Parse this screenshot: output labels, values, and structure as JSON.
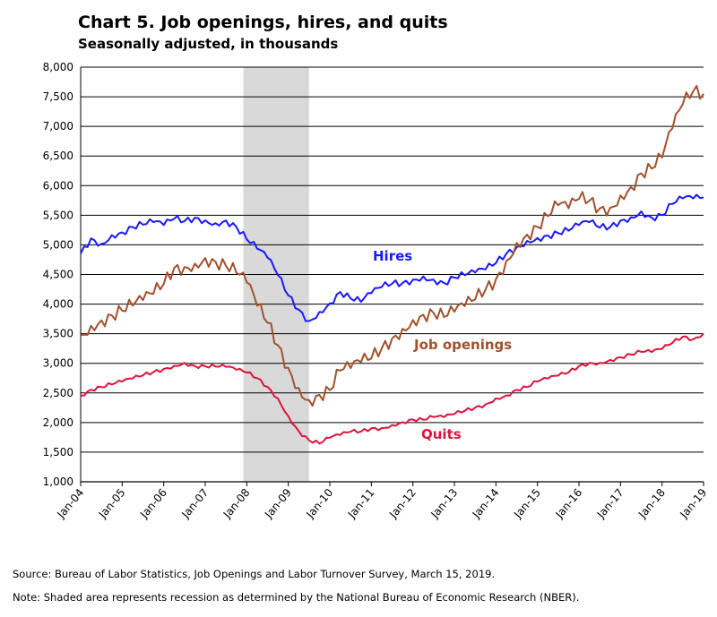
{
  "chart_data": {
    "type": "line",
    "title": "Chart 5. Job openings, hires, and quits",
    "subtitle": "Seasonally adjusted, in thousands",
    "ylim": [
      1000,
      8000
    ],
    "y_ticks": [
      "1,000",
      "1,500",
      "2,000",
      "2,500",
      "3,000",
      "3,500",
      "4,000",
      "4,500",
      "5,000",
      "5,500",
      "6,000",
      "6,500",
      "7,000",
      "7,500",
      "8,000"
    ],
    "x_ticks": [
      "Jan-04",
      "Jan-05",
      "Jan-06",
      "Jan-07",
      "Jan-08",
      "Jan-09",
      "Jan-10",
      "Jan-11",
      "Jan-12",
      "Jan-13",
      "Jan-14",
      "Jan-15",
      "Jan-16",
      "Jan-17",
      "Jan-18",
      "Jan-19"
    ],
    "grid": "horizontal",
    "recession_shading": {
      "start": 2007.917,
      "end": 2009.5
    },
    "series": [
      {
        "name": "Hires",
        "color": "#1a1aff",
        "x": [
          2004.0,
          2004.25,
          2004.5,
          2004.75,
          2005.0,
          2005.25,
          2005.5,
          2005.75,
          2006.0,
          2006.25,
          2006.5,
          2006.75,
          2007.0,
          2007.25,
          2007.5,
          2007.75,
          2008.0,
          2008.25,
          2008.5,
          2008.75,
          2009.0,
          2009.25,
          2009.5,
          2009.75,
          2010.0,
          2010.25,
          2010.5,
          2010.75,
          2011.0,
          2011.25,
          2011.5,
          2011.75,
          2012.0,
          2012.25,
          2012.5,
          2012.75,
          2013.0,
          2013.25,
          2013.5,
          2013.75,
          2014.0,
          2014.25,
          2014.5,
          2014.75,
          2015.0,
          2015.25,
          2015.5,
          2015.75,
          2016.0,
          2016.25,
          2016.5,
          2016.75,
          2017.0,
          2017.25,
          2017.5,
          2017.75,
          2018.0,
          2018.25,
          2018.5,
          2018.75,
          2019.0
        ],
        "values": [
          4850,
          5100,
          5000,
          5150,
          5200,
          5300,
          5350,
          5400,
          5350,
          5450,
          5400,
          5450,
          5400,
          5350,
          5400,
          5300,
          5100,
          4950,
          4800,
          4500,
          4150,
          3900,
          3700,
          3850,
          4000,
          4200,
          4100,
          4050,
          4200,
          4300,
          4350,
          4350,
          4400,
          4450,
          4400,
          4350,
          4450,
          4500,
          4550,
          4600,
          4700,
          4850,
          4950,
          5050,
          5100,
          5150,
          5200,
          5250,
          5350,
          5400,
          5300,
          5300,
          5400,
          5450,
          5550,
          5450,
          5500,
          5700,
          5800,
          5800,
          5800
        ]
      },
      {
        "name": "Job openings",
        "color": "#a0522d",
        "x": [
          2004.0,
          2004.25,
          2004.5,
          2004.75,
          2005.0,
          2005.25,
          2005.5,
          2005.75,
          2006.0,
          2006.25,
          2006.5,
          2006.75,
          2007.0,
          2007.25,
          2007.5,
          2007.75,
          2008.0,
          2008.25,
          2008.5,
          2008.75,
          2009.0,
          2009.25,
          2009.5,
          2009.75,
          2010.0,
          2010.25,
          2010.5,
          2010.75,
          2011.0,
          2011.25,
          2011.5,
          2011.75,
          2012.0,
          2012.25,
          2012.5,
          2012.75,
          2013.0,
          2013.25,
          2013.5,
          2013.75,
          2014.0,
          2014.25,
          2014.5,
          2014.75,
          2015.0,
          2015.25,
          2015.5,
          2015.75,
          2016.0,
          2016.25,
          2016.5,
          2016.75,
          2017.0,
          2017.25,
          2017.5,
          2017.75,
          2018.0,
          2018.25,
          2018.5,
          2018.75,
          2019.0
        ],
        "values": [
          3450,
          3600,
          3700,
          3800,
          3900,
          4000,
          4100,
          4200,
          4350,
          4600,
          4600,
          4650,
          4750,
          4700,
          4650,
          4550,
          4400,
          4000,
          3700,
          3300,
          2900,
          2550,
          2350,
          2450,
          2550,
          2900,
          2950,
          3050,
          3100,
          3250,
          3400,
          3550,
          3700,
          3800,
          3850,
          3800,
          3900,
          4000,
          4100,
          4250,
          4400,
          4700,
          5000,
          5150,
          5300,
          5500,
          5700,
          5650,
          5800,
          5750,
          5600,
          5600,
          5800,
          5950,
          6200,
          6300,
          6500,
          7000,
          7400,
          7600,
          7550
        ]
      },
      {
        "name": "Quits",
        "color": "#dc143c",
        "x": [
          2004.0,
          2004.25,
          2004.5,
          2004.75,
          2005.0,
          2005.25,
          2005.5,
          2005.75,
          2006.0,
          2006.25,
          2006.5,
          2006.75,
          2007.0,
          2007.25,
          2007.5,
          2007.75,
          2008.0,
          2008.25,
          2008.5,
          2008.75,
          2009.0,
          2009.25,
          2009.5,
          2009.75,
          2010.0,
          2010.25,
          2010.5,
          2010.75,
          2011.0,
          2011.25,
          2011.5,
          2011.75,
          2012.0,
          2012.25,
          2012.5,
          2012.75,
          2013.0,
          2013.25,
          2013.5,
          2013.75,
          2014.0,
          2014.25,
          2014.5,
          2014.75,
          2015.0,
          2015.25,
          2015.5,
          2015.75,
          2016.0,
          2016.25,
          2016.5,
          2016.75,
          2017.0,
          2017.25,
          2017.5,
          2017.75,
          2018.0,
          2018.25,
          2018.5,
          2018.75,
          2019.0
        ],
        "values": [
          2450,
          2550,
          2600,
          2650,
          2700,
          2750,
          2800,
          2850,
          2900,
          2950,
          3000,
          2950,
          2950,
          2950,
          2950,
          2900,
          2850,
          2750,
          2600,
          2400,
          2100,
          1850,
          1700,
          1650,
          1750,
          1800,
          1850,
          1850,
          1900,
          1900,
          1950,
          2000,
          2050,
          2050,
          2100,
          2100,
          2150,
          2200,
          2250,
          2300,
          2400,
          2450,
          2550,
          2600,
          2700,
          2750,
          2800,
          2850,
          2950,
          3000,
          3000,
          3050,
          3100,
          3150,
          3200,
          3200,
          3250,
          3350,
          3450,
          3400,
          3500
        ]
      }
    ],
    "labels": {
      "hires": "Hires",
      "openings": "Job openings",
      "quits": "Quits"
    }
  },
  "footer": {
    "source": "Source: Bureau of Labor Statistics, Job Openings and Labor Turnover Survey, March 15, 2019.",
    "note": "Note: Shaded area represents recession as determined by the National Bureau of Economic Research (NBER)."
  }
}
